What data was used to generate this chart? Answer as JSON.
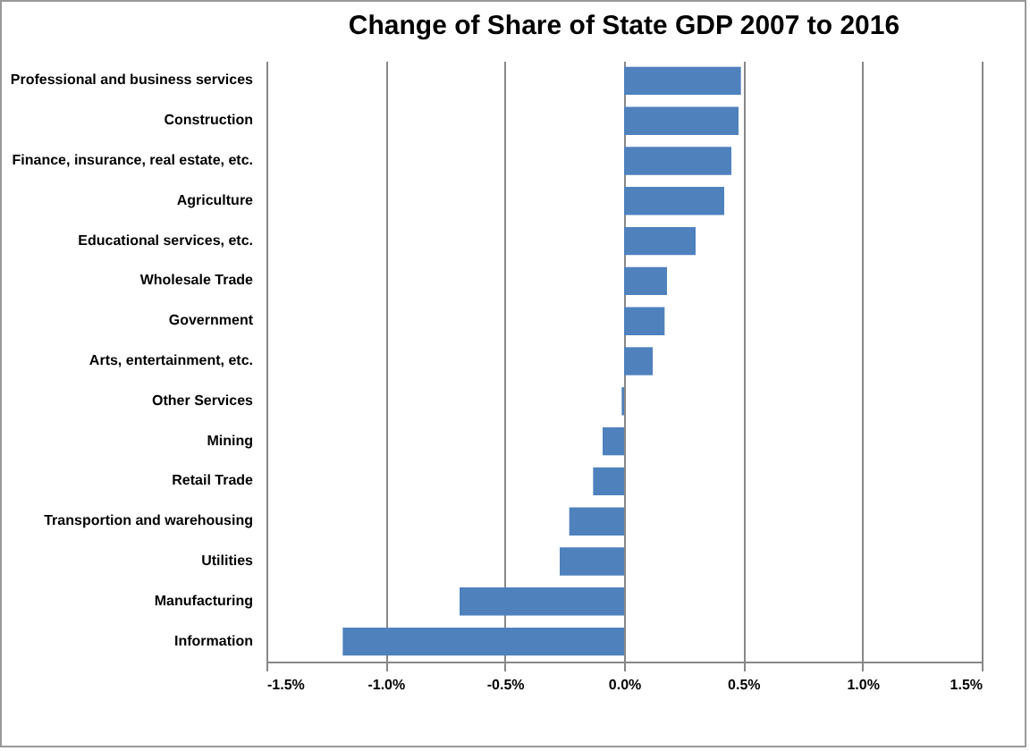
{
  "chart_data": {
    "type": "bar",
    "orientation": "horizontal",
    "title": "Change of Share of State GDP 2007 to 2016",
    "categories": [
      "Professional and business services",
      "Construction",
      "Finance, insurance, real estate, etc.",
      "Agriculture",
      "Educational services, etc.",
      "Wholesale Trade",
      "Government",
      "Arts, entertainment, etc.",
      "Other Services",
      "Mining",
      "Retail Trade",
      "Transportion and warehousing",
      "Utilities",
      "Manufacturing",
      "Information"
    ],
    "values": [
      0.49,
      0.48,
      0.45,
      0.42,
      0.3,
      0.18,
      0.17,
      0.12,
      -0.01,
      -0.09,
      -0.13,
      -0.23,
      -0.27,
      -0.69,
      -1.18
    ],
    "color": "#4f81bd",
    "xlim": [
      -1.5,
      1.5
    ],
    "xticks": [
      {
        "value": -1.5,
        "label": "-1.5%"
      },
      {
        "value": -1.0,
        "label": "-1.0%"
      },
      {
        "value": -0.5,
        "label": "-0.5%"
      },
      {
        "value": 0,
        "label": "0.0%"
      },
      {
        "value": 0.5,
        "label": "0.5%"
      },
      {
        "value": 1.0,
        "label": "1.0%"
      },
      {
        "value": 1.5,
        "label": "1.5%"
      }
    ],
    "grid": "x"
  }
}
